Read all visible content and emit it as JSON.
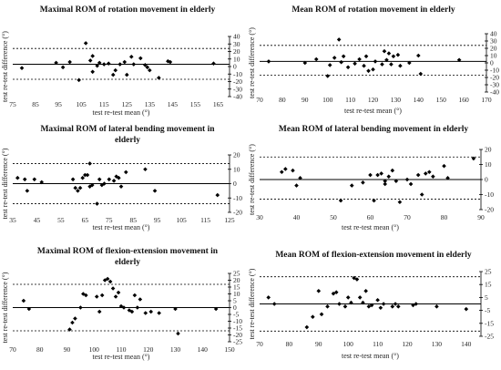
{
  "chart_data": [
    {
      "type": "scatter",
      "title": [
        "Maximal ROM of rotation movement in elderly"
      ],
      "xlabel": "test re-test mean (°)",
      "ylabel": "test re-test difference (°)",
      "xlim": [
        75,
        170
      ],
      "ylim": [
        -40,
        40
      ],
      "xticks": [
        75,
        85,
        95,
        105,
        115,
        125,
        135,
        145,
        155,
        165
      ],
      "yticks": [
        -40,
        -30,
        -20,
        -10,
        0,
        10,
        20,
        30,
        40
      ],
      "y_axis_side": "right",
      "reference_lines": {
        "mean": 3,
        "upper_loa": 24,
        "lower_loa": -17
      },
      "points": [
        [
          79,
          -2
        ],
        [
          94,
          5
        ],
        [
          97,
          -1
        ],
        [
          100,
          6
        ],
        [
          104,
          -18
        ],
        [
          107,
          31
        ],
        [
          109,
          8
        ],
        [
          110,
          14
        ],
        [
          110,
          -7
        ],
        [
          112,
          1
        ],
        [
          113,
          5
        ],
        [
          115,
          3
        ],
        [
          117,
          4
        ],
        [
          119,
          -11
        ],
        [
          120,
          -5
        ],
        [
          122,
          3
        ],
        [
          124,
          6
        ],
        [
          125,
          -11
        ],
        [
          127,
          13
        ],
        [
          128,
          3
        ],
        [
          131,
          11
        ],
        [
          133,
          2
        ],
        [
          134,
          -1
        ],
        [
          135,
          -5
        ],
        [
          139,
          -15
        ],
        [
          143,
          7
        ],
        [
          144,
          6
        ],
        [
          163,
          4
        ]
      ]
    },
    {
      "type": "scatter",
      "title": [
        "Mean ROM of rotation movement in elderly"
      ],
      "xlabel": "test re-test mean (°)",
      "ylabel": "test re-test difference (°)",
      "xlim": [
        70,
        170
      ],
      "ylim": [
        -40,
        40
      ],
      "xticks": [
        70,
        80,
        90,
        100,
        110,
        120,
        130,
        140,
        150,
        160,
        170
      ],
      "yticks": [
        -40,
        -30,
        -20,
        -10,
        0,
        10,
        20,
        30,
        40
      ],
      "y_axis_side": "right",
      "reference_lines": {
        "mean": 2,
        "upper_loa": 24,
        "lower_loa": -17
      },
      "points": [
        [
          74,
          2
        ],
        [
          90,
          0
        ],
        [
          95,
          5
        ],
        [
          100,
          -18
        ],
        [
          101,
          -3
        ],
        [
          103,
          7
        ],
        [
          105,
          32
        ],
        [
          106,
          1
        ],
        [
          107,
          9
        ],
        [
          109,
          -6
        ],
        [
          112,
          -1
        ],
        [
          114,
          5
        ],
        [
          116,
          -4
        ],
        [
          117,
          9
        ],
        [
          118,
          -11
        ],
        [
          120,
          -9
        ],
        [
          121,
          2
        ],
        [
          124,
          -2
        ],
        [
          125,
          16
        ],
        [
          126,
          4
        ],
        [
          127,
          13
        ],
        [
          128,
          -2
        ],
        [
          129,
          9
        ],
        [
          131,
          11
        ],
        [
          132,
          -4
        ],
        [
          136,
          0
        ],
        [
          140,
          10
        ],
        [
          141,
          -15
        ],
        [
          158,
          4
        ]
      ]
    },
    {
      "type": "scatter",
      "title": [
        "Maximal ROM of lateral bending movement in",
        "elderly"
      ],
      "xlabel": "test re-test mean (°)",
      "ylabel": "test re-test difference (°)",
      "xlim": [
        35,
        125
      ],
      "ylim": [
        -20,
        20
      ],
      "xticks": [
        35,
        45,
        55,
        65,
        75,
        85,
        95,
        105,
        115,
        125
      ],
      "yticks": [
        -20,
        -10,
        0,
        10,
        20
      ],
      "y_axis_side": "right",
      "reference_lines": {
        "mean": 0,
        "upper_loa": 14,
        "lower_loa": -14
      },
      "points": [
        [
          37,
          4
        ],
        [
          40,
          3
        ],
        [
          41,
          -5
        ],
        [
          44,
          3
        ],
        [
          47,
          1
        ],
        [
          60,
          3
        ],
        [
          61,
          -3
        ],
        [
          62,
          -5
        ],
        [
          63,
          -3
        ],
        [
          64,
          4
        ],
        [
          65,
          6
        ],
        [
          66,
          6
        ],
        [
          67,
          -2
        ],
        [
          67,
          14
        ],
        [
          68,
          -1
        ],
        [
          70,
          -14
        ],
        [
          71,
          3
        ],
        [
          72,
          -1
        ],
        [
          73,
          0
        ],
        [
          75,
          3
        ],
        [
          77,
          2
        ],
        [
          78,
          5
        ],
        [
          79,
          4
        ],
        [
          80,
          -2
        ],
        [
          82,
          8
        ],
        [
          90,
          10
        ],
        [
          94,
          -5
        ],
        [
          120,
          -8
        ]
      ]
    },
    {
      "type": "scatter",
      "title": [
        "Mean ROM of lateral bending movement in elderly"
      ],
      "xlabel": "test re-test mean (°)",
      "ylabel": "test re-test difference (°)",
      "xlim": [
        30,
        90
      ],
      "ylim": [
        -20,
        20
      ],
      "xticks": [
        30,
        40,
        50,
        60,
        70,
        80,
        90
      ],
      "yticks": [
        -20,
        -10,
        0,
        10,
        20
      ],
      "y_axis_side": "right",
      "reference_lines": {
        "mean": 0,
        "upper_loa": 15,
        "lower_loa": -13
      },
      "points": [
        [
          36,
          5
        ],
        [
          37,
          7
        ],
        [
          39,
          6
        ],
        [
          40,
          -4
        ],
        [
          41,
          1
        ],
        [
          52,
          -14
        ],
        [
          55,
          -4
        ],
        [
          58,
          -2
        ],
        [
          60,
          3
        ],
        [
          61,
          -14
        ],
        [
          62,
          3
        ],
        [
          63,
          4
        ],
        [
          64,
          -1
        ],
        [
          64,
          -3
        ],
        [
          65,
          2
        ],
        [
          66,
          6
        ],
        [
          67,
          -1
        ],
        [
          68,
          -15
        ],
        [
          70,
          0
        ],
        [
          71,
          -3
        ],
        [
          73,
          3
        ],
        [
          74,
          -10
        ],
        [
          75,
          4
        ],
        [
          76,
          5
        ],
        [
          77,
          2
        ],
        [
          80,
          9
        ],
        [
          81,
          1
        ],
        [
          88,
          14
        ]
      ]
    },
    {
      "type": "scatter",
      "title": [
        "Maximal ROM of flexion-extension movement in",
        "elderly"
      ],
      "xlabel": "test re-test mean (°)",
      "ylabel": "test re-test difference (°)",
      "xlim": [
        70,
        150
      ],
      "ylim": [
        -25,
        25
      ],
      "xticks": [
        70,
        80,
        90,
        100,
        110,
        120,
        130,
        140,
        150
      ],
      "yticks": [
        -25,
        -20,
        -15,
        -10,
        -5,
        0,
        5,
        10,
        15,
        20,
        25
      ],
      "y_axis_side": "right",
      "reference_lines": {
        "mean": 0,
        "upper_loa": 17,
        "lower_loa": -17
      },
      "points": [
        [
          74,
          5
        ],
        [
          76,
          -1
        ],
        [
          91,
          -16
        ],
        [
          92,
          -11
        ],
        [
          93,
          -8
        ],
        [
          95,
          0
        ],
        [
          96,
          10
        ],
        [
          97,
          9
        ],
        [
          101,
          8
        ],
        [
          102,
          -3
        ],
        [
          103,
          9
        ],
        [
          104,
          20
        ],
        [
          105,
          21
        ],
        [
          106,
          19
        ],
        [
          107,
          14
        ],
        [
          108,
          8
        ],
        [
          109,
          11
        ],
        [
          110,
          1
        ],
        [
          111,
          0
        ],
        [
          113,
          -2
        ],
        [
          114,
          -3
        ],
        [
          115,
          9
        ],
        [
          116,
          0
        ],
        [
          117,
          6
        ],
        [
          119,
          -4
        ],
        [
          121,
          -3
        ],
        [
          124,
          -4
        ],
        [
          130,
          -1
        ],
        [
          131,
          -19
        ],
        [
          145,
          -1
        ]
      ]
    },
    {
      "type": "scatter",
      "title": [
        "Mean ROM of flexion-extension movement in elderly"
      ],
      "xlabel": "test re-test mean (°)",
      "ylabel": "test re-test difference (°)",
      "xlim": [
        70,
        145
      ],
      "ylim": [
        -25,
        25
      ],
      "xticks": [
        70,
        80,
        90,
        100,
        110,
        120,
        130,
        140
      ],
      "yticks": [
        -25,
        -15,
        -5,
        5,
        15,
        25
      ],
      "y_axis_side": "right",
      "reference_lines": {
        "mean": 0,
        "upper_loa": 21,
        "lower_loa": -21
      },
      "points": [
        [
          73,
          5
        ],
        [
          75,
          0
        ],
        [
          86,
          -18
        ],
        [
          88,
          -10
        ],
        [
          90,
          10
        ],
        [
          91,
          -8
        ],
        [
          93,
          -2
        ],
        [
          95,
          8
        ],
        [
          96,
          9
        ],
        [
          97,
          0
        ],
        [
          99,
          -2
        ],
        [
          100,
          5
        ],
        [
          101,
          1
        ],
        [
          102,
          20
        ],
        [
          103,
          19
        ],
        [
          104,
          5
        ],
        [
          105,
          1
        ],
        [
          106,
          10
        ],
        [
          107,
          -2
        ],
        [
          108,
          -1
        ],
        [
          110,
          3
        ],
        [
          111,
          -3
        ],
        [
          112,
          0
        ],
        [
          115,
          -2
        ],
        [
          116,
          0
        ],
        [
          117,
          -2
        ],
        [
          122,
          -1
        ],
        [
          123,
          0
        ],
        [
          130,
          -2
        ],
        [
          140,
          -4
        ]
      ]
    }
  ]
}
